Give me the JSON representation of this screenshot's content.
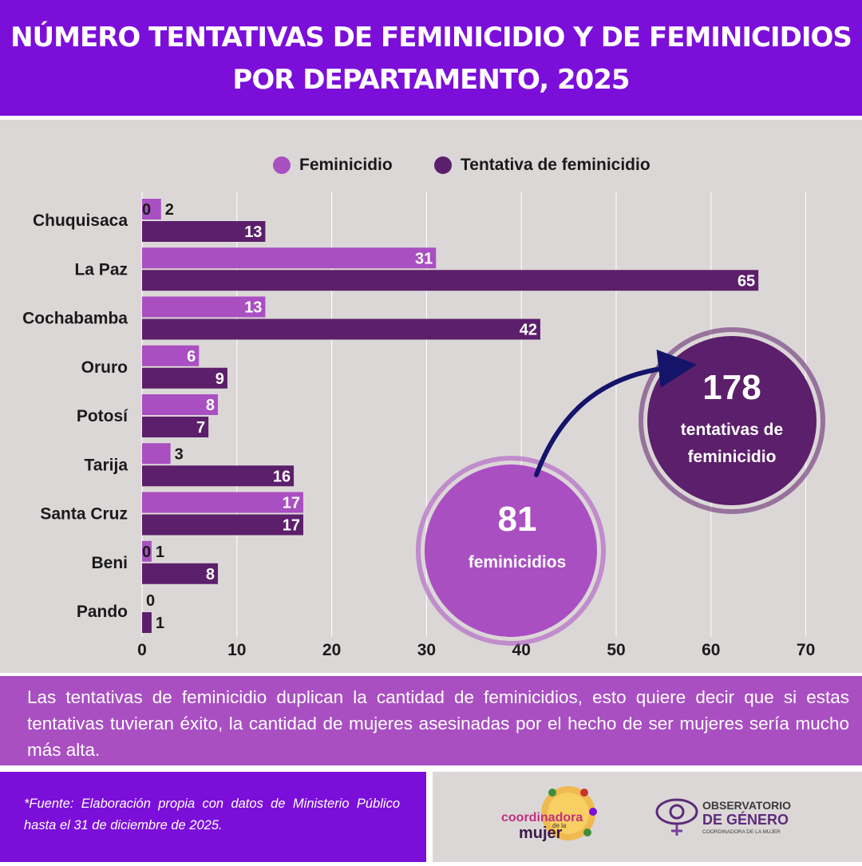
{
  "header": {
    "title_line1": "NÚMERO TENTATIVAS DE FEMINICIDIO Y DE FEMINICIDIOS",
    "title_line2": "POR DEPARTAMENTO, 2025"
  },
  "legend": {
    "series1": "Feminicidio",
    "series2": "Tentativa de feminicidio"
  },
  "colors": {
    "header": "#7b0fd9",
    "feminicidio": "#a94fc2",
    "tentativa": "#5c1f6b",
    "background": "#dcd7d7",
    "arrow": "#14146b"
  },
  "chart_data": {
    "type": "bar",
    "orientation": "horizontal",
    "categories": [
      "Chuquisaca",
      "La Paz",
      "Cochabamba",
      "Oruro",
      "Potosí",
      "Tarija",
      "Santa Cruz",
      "Beni",
      "Pando"
    ],
    "series": [
      {
        "name": "Feminicidio",
        "values": [
          2,
          31,
          13,
          6,
          8,
          3,
          17,
          1,
          0
        ]
      },
      {
        "name": "Tentativa de feminicidio",
        "values": [
          13,
          65,
          42,
          9,
          7,
          16,
          17,
          8,
          1
        ]
      }
    ],
    "xlim": [
      0,
      70
    ],
    "xticks": [
      0,
      10,
      20,
      30,
      40,
      50,
      60,
      70
    ],
    "grid": true,
    "legend_position": "top",
    "extra_labels": [
      {
        "category": "Chuquisaca",
        "text": "0"
      },
      {
        "category": "Beni",
        "text": "0"
      }
    ]
  },
  "callouts": {
    "feminicidios": {
      "number": "81",
      "label": "feminicidios"
    },
    "tentativas": {
      "number": "178",
      "label_line1": "tentativas de",
      "label_line2": "feminicidio"
    }
  },
  "summary": "Las tentativas de feminicidio duplican la cantidad de feminicidios, esto quiere decir que si estas tentativas tuvieran éxito, la cantidad de mujeres asesinadas por el hecho de ser mujeres sería mucho más alta.",
  "footer": {
    "source": "*Fuente: Elaboración propia con datos de Ministerio Público hasta el 31 de diciembre de 2025.",
    "logo1": {
      "part1": "coordinadora",
      "part2": "de la",
      "part3": "mujer"
    },
    "logo2": {
      "line1": "OBSERVATORIO",
      "line2": "DE GÉNERO",
      "line3": "COORDINADORA DE LA MUJER"
    }
  }
}
